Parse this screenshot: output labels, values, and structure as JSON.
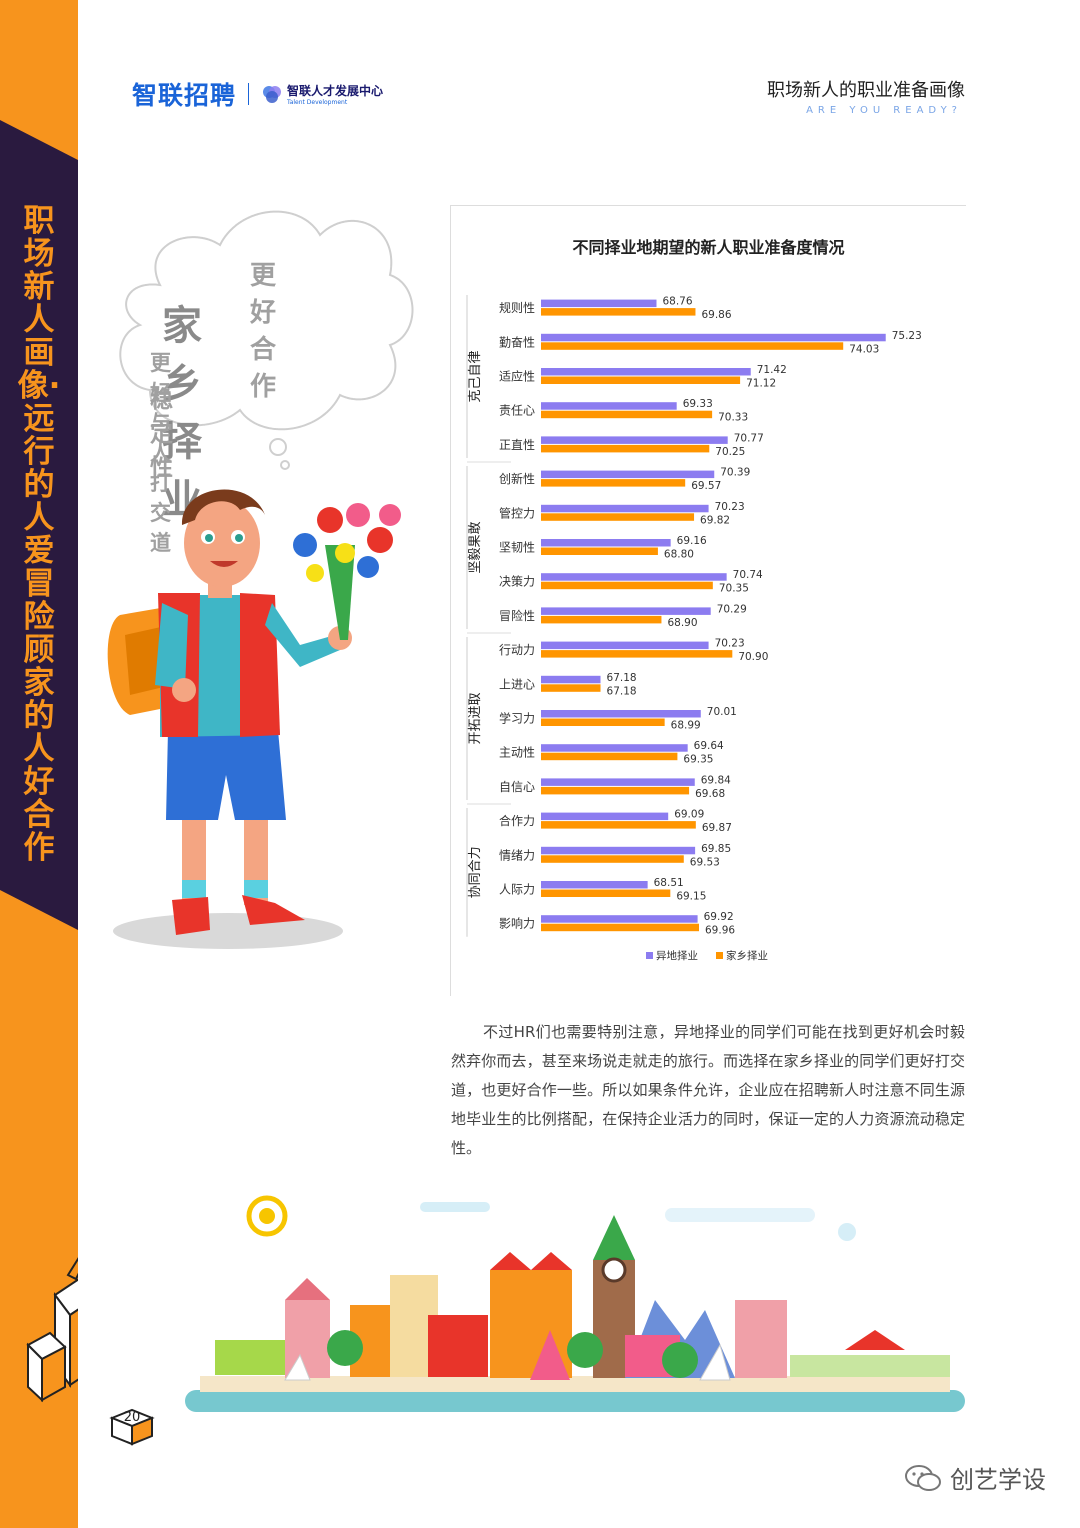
{
  "sidebar": {
    "text": "职场新人画像·远行的人爱冒险 顾家的人好合作"
  },
  "header": {
    "logo_main": "智联招聘",
    "logo_sub": "智联人才发展中心",
    "logo_sub_en": "Talent Development",
    "title": "职场新人的职业准备画像",
    "subtitle": "ARE YOU READY?"
  },
  "cloud": {
    "line1": "更好合作",
    "line2": "家乡择业",
    "line3": "更好与人打交道",
    "line4": "稳定性"
  },
  "paragraph": "不过HR们也需要特别注意，异地择业的同学们可能在找到更好机会时毅然弃你而去，甚至来场说走就走的旅行。而选择在家乡择业的同学们更好打交道，也更好合作一些。所以如果条件允许，企业应在招聘新人时注意不同生源地毕业生的比例搭配，在保持企业活力的同时，保证一定的人力资源流动稳定性。",
  "page_number": "20",
  "watermark": "创艺学设",
  "colors": {
    "accent_orange": "#f7941d",
    "sidebar_dark": "#2a1a3f",
    "series_a": "#8c7cf0",
    "series_b": "#ff9500"
  },
  "chart_data": {
    "type": "bar",
    "orientation": "horizontal",
    "title": "不同择业地期望的新人职业准备度情况",
    "groups": [
      {
        "name": "克己自律",
        "categories": [
          "规则性",
          "勤奋性",
          "适应性",
          "责任心",
          "正直性"
        ]
      },
      {
        "name": "坚毅果敢",
        "categories": [
          "创新性",
          "管控力",
          "坚韧性",
          "决策力",
          "冒险性"
        ]
      },
      {
        "name": "开拓进取",
        "categories": [
          "行动力",
          "上进心",
          "学习力",
          "主动性",
          "自信心"
        ]
      },
      {
        "name": "协同合力",
        "categories": [
          "合作力",
          "情绪力",
          "人际力",
          "影响力"
        ]
      }
    ],
    "categories": [
      "规则性",
      "勤奋性",
      "适应性",
      "责任心",
      "正直性",
      "创新性",
      "管控力",
      "坚韧性",
      "决策力",
      "冒险性",
      "行动力",
      "上进心",
      "学习力",
      "主动性",
      "自信心",
      "合作力",
      "情绪力",
      "人际力",
      "影响力"
    ],
    "series": [
      {
        "name": "异地择业",
        "color": "#8c7cf0",
        "values": [
          68.76,
          75.23,
          71.42,
          69.33,
          70.77,
          70.39,
          70.23,
          69.16,
          70.74,
          70.29,
          70.23,
          67.18,
          70.01,
          69.64,
          69.84,
          69.09,
          69.85,
          68.51,
          69.92
        ]
      },
      {
        "name": "家乡择业",
        "color": "#ff9500",
        "values": [
          69.86,
          74.03,
          71.12,
          70.33,
          70.25,
          69.57,
          69.82,
          68.8,
          70.35,
          68.9,
          70.9,
          67.18,
          68.99,
          69.35,
          69.68,
          69.87,
          69.53,
          69.15,
          69.96
        ]
      }
    ],
    "value_labels": [
      [
        "68.76",
        "75.23",
        "71.42",
        "69.33",
        "70.77",
        "70.39",
        "70.23",
        "69.16",
        "70.74",
        "70.29",
        "70.23",
        "67.18",
        "70.01",
        "69.64",
        "69.84",
        "69.09",
        "69.85",
        "68.51",
        "69.92"
      ],
      [
        "69.86",
        "74.03",
        "71.12",
        "70.33",
        "70.25",
        "69.57",
        "69.82",
        "68.80",
        "70.35",
        "68.90",
        "70.90",
        "67.18",
        "68.99",
        "69.35",
        "69.68",
        "69.87",
        "69.53",
        "69.15",
        "69.96"
      ]
    ],
    "xlim": [
      65.5,
      76
    ],
    "legend": "bottom",
    "grid": false
  }
}
